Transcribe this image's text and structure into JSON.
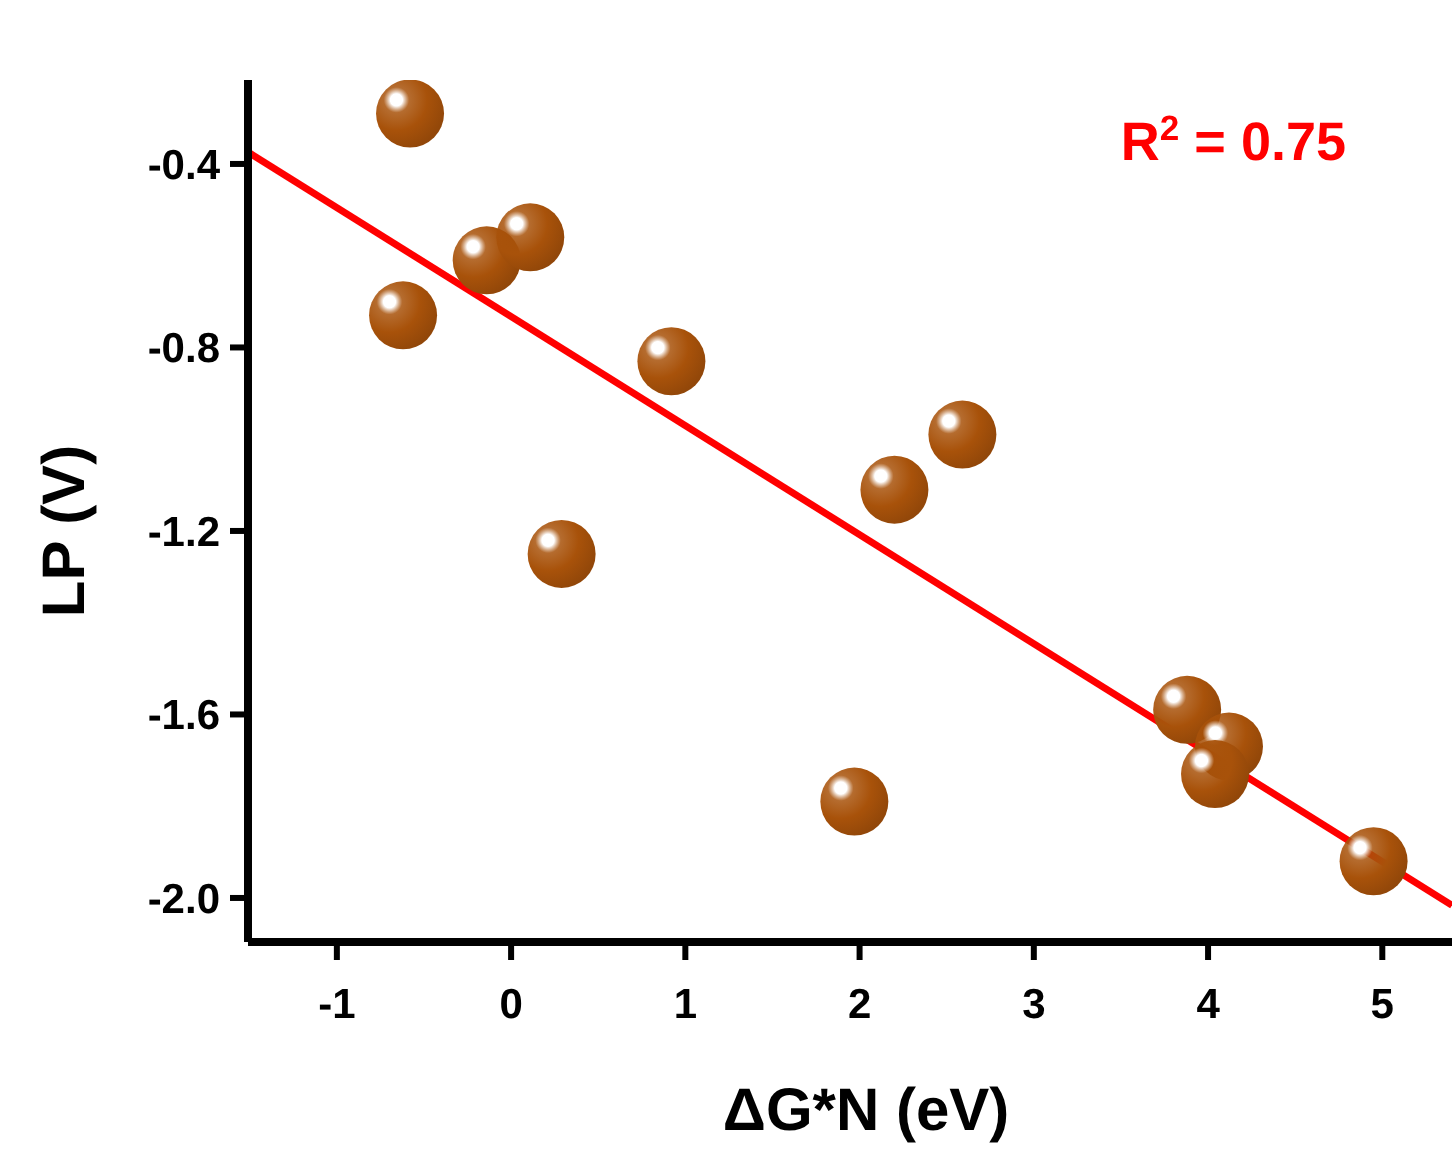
{
  "chart_data": {
    "type": "scatter",
    "xlabel": "ΔG*N (eV)",
    "ylabel": "LP (V)",
    "xlim": [
      -1.51,
      5.4
    ],
    "ylim": [
      -2.096,
      -0.217
    ],
    "xticks": [
      -1,
      0,
      1,
      2,
      3,
      4,
      5
    ],
    "yticks": [
      {
        "value": -0.4,
        "label": "-0.4"
      },
      {
        "value": -0.8,
        "label": "-0.8"
      },
      {
        "value": -1.2,
        "label": "-1.2"
      },
      {
        "value": -1.6,
        "label": "-1.6"
      },
      {
        "value": -2.0,
        "label": "-2.0"
      }
    ],
    "grid": false,
    "annotations": [
      "R$^{2}$ = 0.75"
    ],
    "series": [
      {
        "marker": "circle",
        "color": "#a8520a",
        "x": [
          -0.58,
          -0.62,
          -0.14,
          0.11,
          0.29,
          0.92,
          1.97,
          2.2,
          2.59,
          3.88,
          4.12,
          4.04,
          4.95
        ],
        "values": [
          -0.29,
          -0.73,
          -0.61,
          -0.56,
          -1.25,
          -0.83,
          -1.79,
          -1.11,
          -0.99,
          -1.59,
          -1.67,
          -1.73,
          -1.92
        ]
      },
      {
        "type": "line",
        "color": "#ff0000",
        "x": [
          -1.51,
          5.4
        ],
        "values": [
          -0.374,
          -2.016
        ]
      }
    ]
  }
}
